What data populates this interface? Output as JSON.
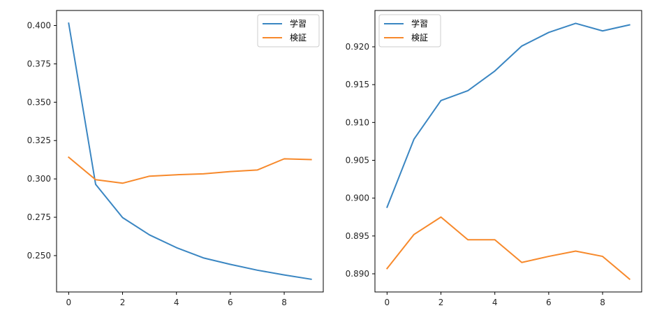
{
  "chart_data": [
    {
      "type": "line",
      "x": [
        0,
        1,
        2,
        3,
        4,
        5,
        6,
        7,
        8,
        9
      ],
      "series": [
        {
          "name": "学習",
          "color": "#3a86c2",
          "values": [
            0.4015,
            0.2965,
            0.2748,
            0.2635,
            0.2552,
            0.2485,
            0.2443,
            0.2405,
            0.2374,
            0.2346
          ]
        },
        {
          "name": "検証",
          "color": "#f7892b",
          "values": [
            0.3141,
            0.2995,
            0.2972,
            0.3018,
            0.3027,
            0.3033,
            0.3048,
            0.3058,
            0.3131,
            0.3126
          ]
        }
      ],
      "xlim": [
        -0.45,
        9.45
      ],
      "ylim": [
        0.2263,
        0.4098
      ],
      "xticks": [
        0,
        2,
        4,
        6,
        8
      ],
      "yticks": [
        0.25,
        0.275,
        0.3,
        0.325,
        0.35,
        0.375,
        0.4
      ],
      "ytick_labels": [
        "0.250",
        "0.275",
        "0.300",
        "0.325",
        "0.350",
        "0.375",
        "0.400"
      ],
      "legend": "upper right",
      "title": "",
      "xlabel": "",
      "ylabel": ""
    },
    {
      "type": "line",
      "x": [
        0,
        1,
        2,
        3,
        4,
        5,
        6,
        7,
        8,
        9
      ],
      "series": [
        {
          "name": "学習",
          "color": "#3a86c2",
          "values": [
            0.8988,
            0.9078,
            0.9129,
            0.9142,
            0.9168,
            0.9201,
            0.9219,
            0.9231,
            0.9221,
            0.9229
          ]
        },
        {
          "name": "検証",
          "color": "#f7892b",
          "values": [
            0.8907,
            0.8952,
            0.8975,
            0.8945,
            0.8945,
            0.8915,
            0.8923,
            0.893,
            0.8923,
            0.8893
          ]
        }
      ],
      "xlim": [
        -0.45,
        9.45
      ],
      "ylim": [
        0.8876,
        0.9248
      ],
      "xticks": [
        0,
        2,
        4,
        6,
        8
      ],
      "yticks": [
        0.89,
        0.895,
        0.9,
        0.905,
        0.91,
        0.915,
        0.92
      ],
      "ytick_labels": [
        "0.890",
        "0.895",
        "0.900",
        "0.905",
        "0.910",
        "0.915",
        "0.920"
      ],
      "legend": "upper left",
      "title": "",
      "xlabel": "",
      "ylabel": ""
    }
  ]
}
